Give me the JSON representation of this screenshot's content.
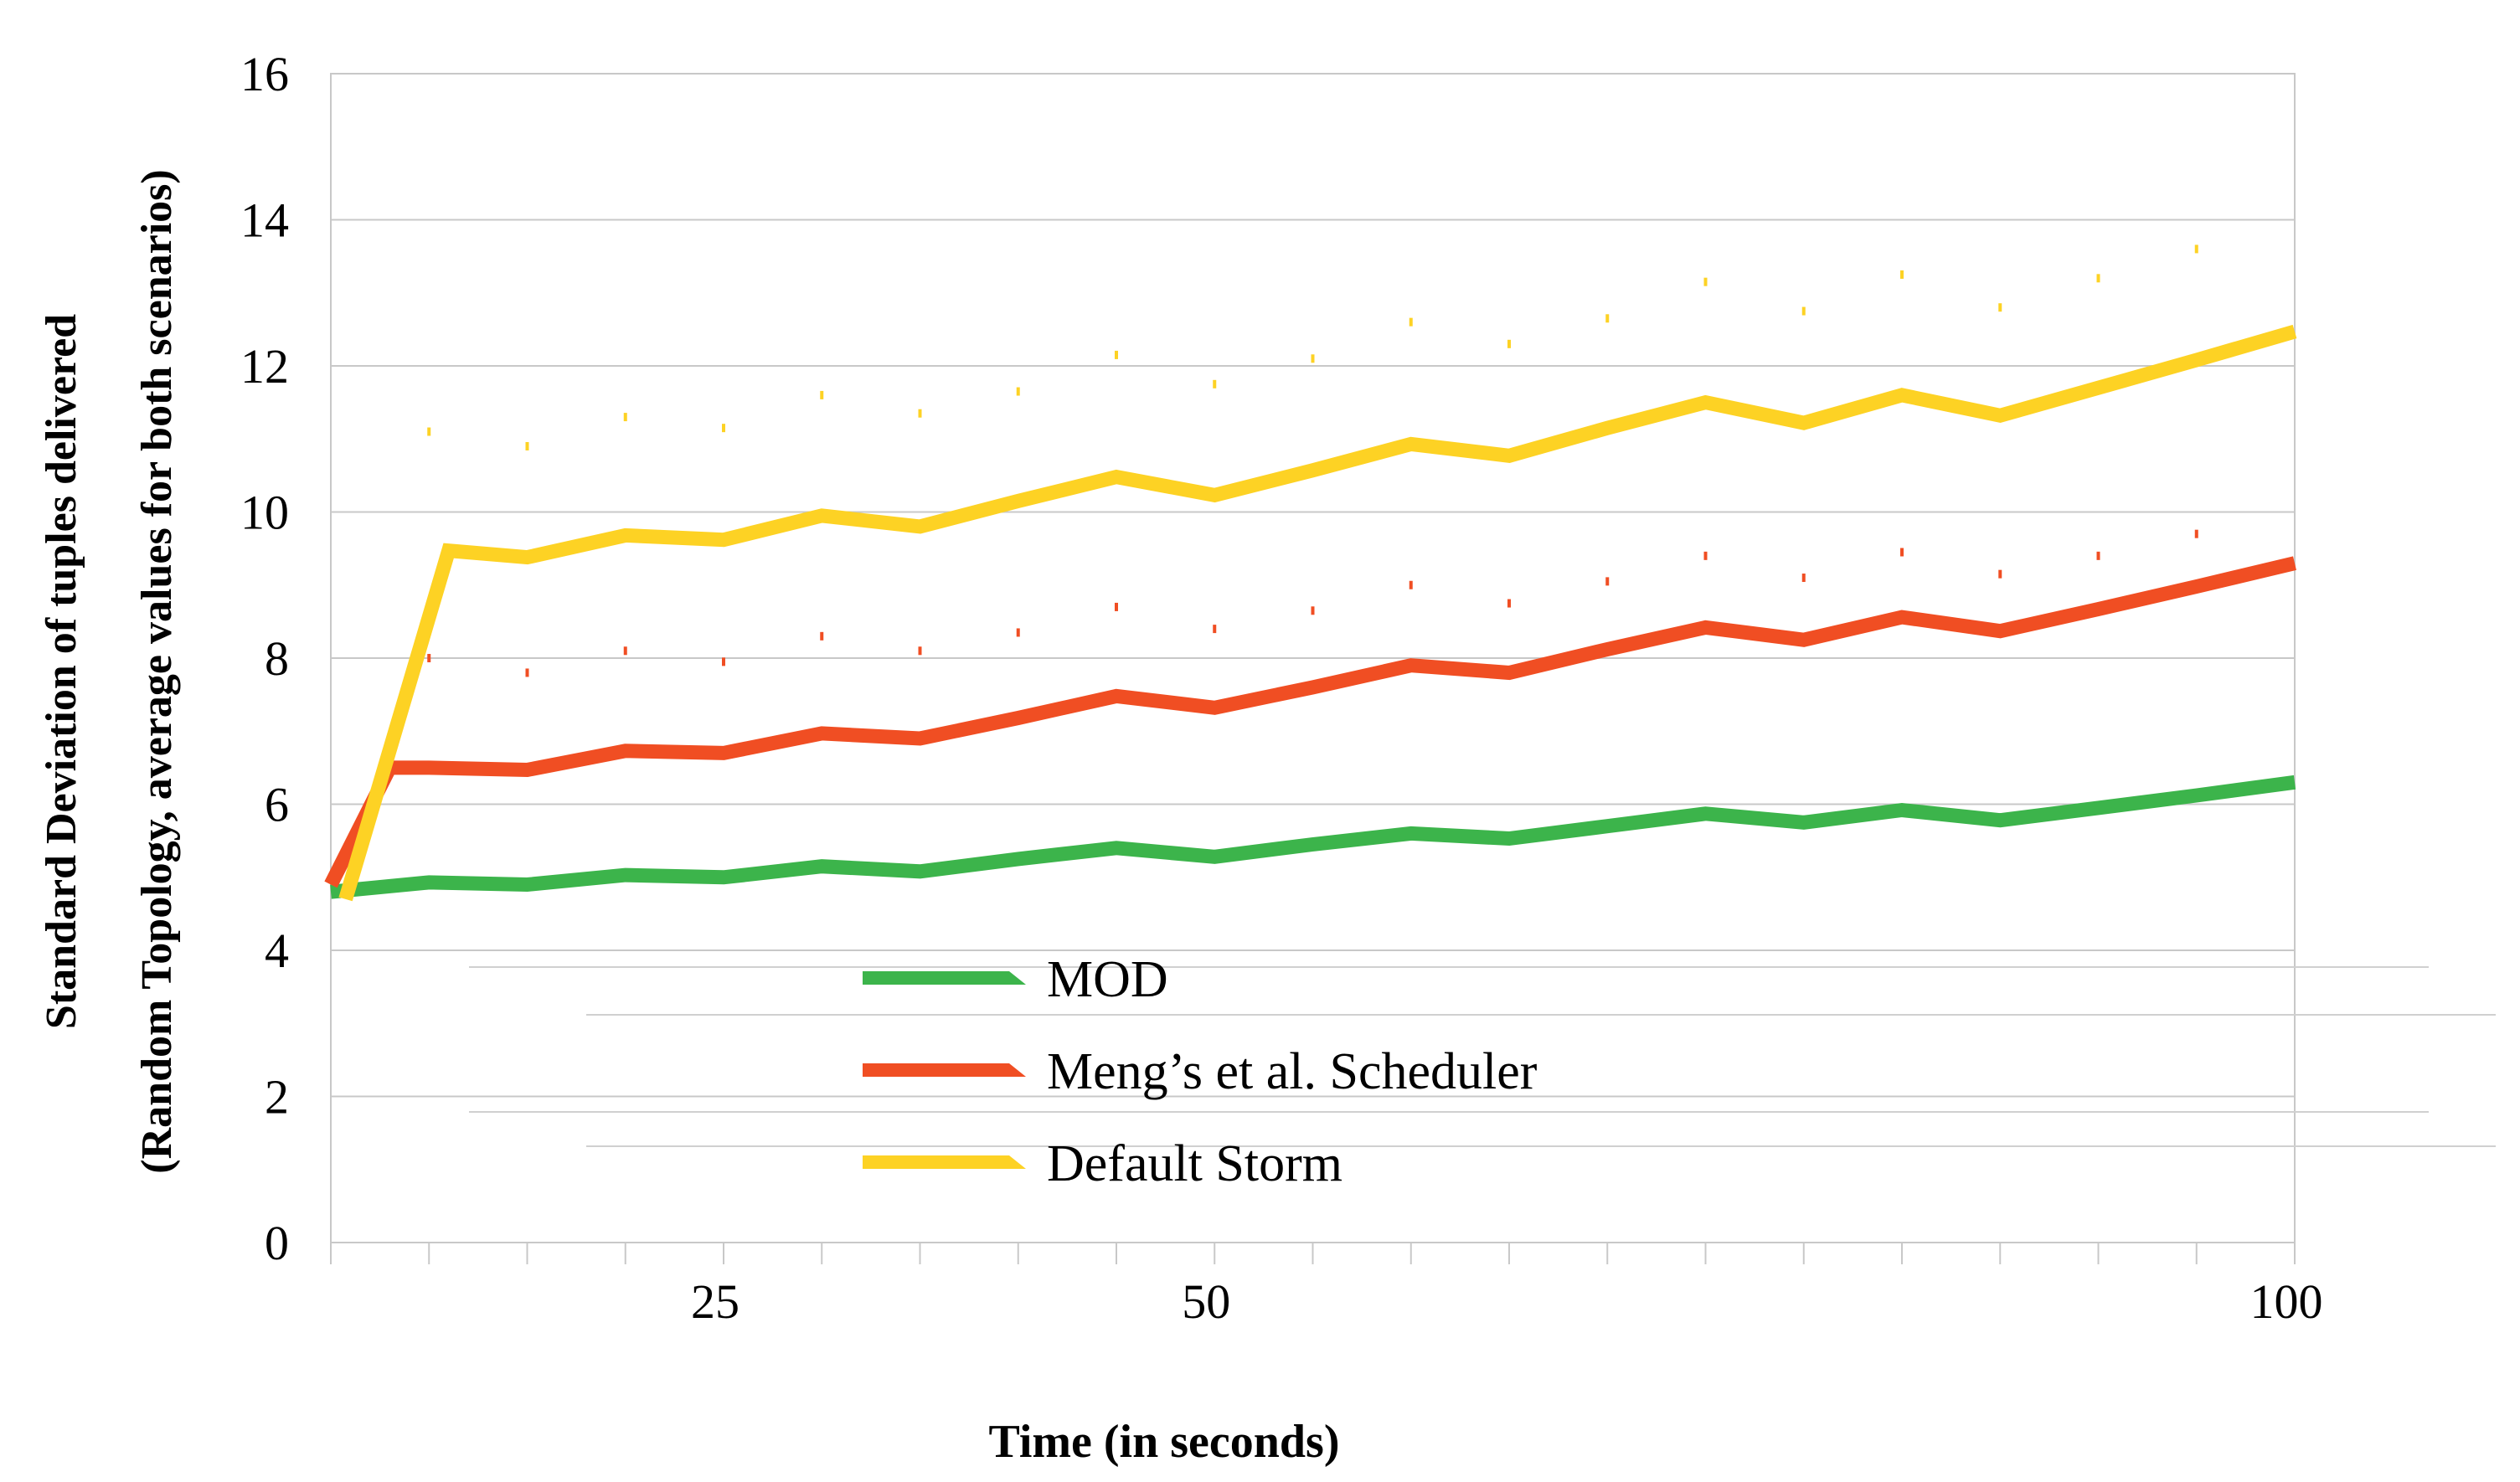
{
  "chart_data": {
    "type": "line",
    "title": "",
    "xlabel": "Time (in seconds)",
    "ylabel_line1": "Standard Deviation of tuples delivered",
    "ylabel_line2": "(Random Topology, average values for both scenarios)",
    "ylim": [
      0,
      16
    ],
    "yticks": [
      0,
      2,
      4,
      6,
      8,
      10,
      12,
      14,
      16
    ],
    "xlim": [
      1,
      21
    ],
    "x_tick_labels": [
      {
        "x": 5,
        "label": "25"
      },
      {
        "x": 10,
        "label": "50"
      },
      {
        "x": 21,
        "label": "100"
      }
    ],
    "grid": true,
    "legend_position": "lower-center",
    "series": [
      {
        "name": "MOD",
        "color": "#3cb44b",
        "x": [
          1,
          2,
          3,
          4,
          5,
          6,
          7,
          8,
          9,
          10,
          11,
          12,
          13,
          14,
          15,
          16,
          17,
          18,
          19,
          20,
          21
        ],
        "values": [
          4.8,
          4.93,
          4.9,
          5.03,
          5.0,
          5.15,
          5.08,
          5.25,
          5.4,
          5.28,
          5.45,
          5.6,
          5.53,
          5.7,
          5.87,
          5.75,
          5.92,
          5.78,
          5.95,
          6.12,
          6.3
        ]
      },
      {
        "name": "Meng’s et al. Scheduler",
        "color": "#f04e23",
        "x": [
          1,
          1.6,
          2,
          3,
          4,
          5,
          6,
          7,
          8,
          9,
          10,
          11,
          12,
          13,
          14,
          15,
          16,
          17,
          18,
          19,
          20,
          21
        ],
        "values": [
          4.9,
          6.5,
          6.5,
          6.47,
          6.73,
          6.7,
          6.97,
          6.9,
          7.18,
          7.48,
          7.32,
          7.6,
          7.9,
          7.8,
          8.12,
          8.42,
          8.25,
          8.56,
          8.37,
          8.67,
          8.98,
          9.3
        ]
      },
      {
        "name": "Default Storm",
        "color": "#fdd224",
        "x": [
          1.15,
          2.2,
          3,
          4,
          5,
          6,
          7,
          8,
          9,
          10,
          11,
          12,
          13,
          14,
          15,
          16,
          17,
          18,
          19,
          20,
          21
        ],
        "values": [
          4.7,
          9.47,
          9.38,
          9.68,
          9.62,
          9.95,
          9.8,
          10.15,
          10.48,
          10.23,
          10.57,
          10.93,
          10.77,
          11.15,
          11.5,
          11.22,
          11.6,
          11.32,
          11.7,
          12.08,
          12.47
        ]
      }
    ],
    "faint_marks": [
      {
        "series": "Default Storm",
        "x": [
          2,
          3,
          4,
          5,
          6,
          7,
          8,
          9,
          10,
          11,
          12,
          13,
          14,
          15,
          16,
          17,
          18,
          19,
          20
        ],
        "values": [
          11.1,
          10.9,
          11.3,
          11.15,
          11.6,
          11.35,
          11.65,
          12.15,
          11.75,
          12.1,
          12.6,
          12.3,
          12.65,
          13.15,
          12.75,
          13.25,
          12.8,
          13.2,
          13.6
        ]
      },
      {
        "series": "Meng’s et al. Scheduler",
        "x": [
          2,
          3,
          4,
          5,
          6,
          7,
          8,
          9,
          10,
          11,
          12,
          13,
          14,
          15,
          16,
          17,
          18,
          19,
          20
        ],
        "values": [
          8.0,
          7.8,
          8.1,
          7.95,
          8.3,
          8.1,
          8.35,
          8.7,
          8.4,
          8.65,
          9.0,
          8.75,
          9.05,
          9.4,
          9.1,
          9.45,
          9.15,
          9.4,
          9.7
        ]
      }
    ]
  }
}
